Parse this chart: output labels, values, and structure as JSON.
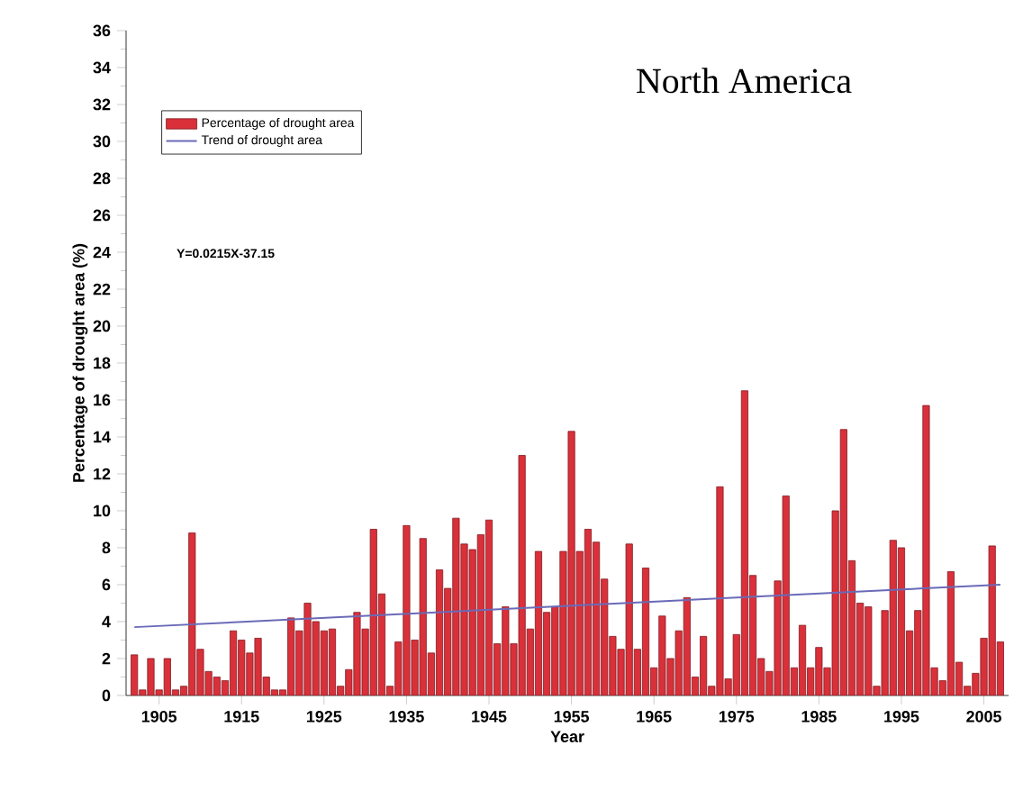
{
  "chart_data": {
    "type": "bar",
    "title": "North America",
    "xlabel": "Year",
    "ylabel": "Percentage of drought area (%)",
    "annotations": [
      "Y=0.0215X-37.15"
    ],
    "x": [
      1902,
      1903,
      1904,
      1905,
      1906,
      1907,
      1908,
      1909,
      1910,
      1911,
      1912,
      1913,
      1914,
      1915,
      1916,
      1917,
      1918,
      1919,
      1920,
      1921,
      1922,
      1923,
      1924,
      1925,
      1926,
      1927,
      1928,
      1929,
      1930,
      1931,
      1932,
      1933,
      1934,
      1935,
      1936,
      1937,
      1938,
      1939,
      1940,
      1941,
      1942,
      1943,
      1944,
      1945,
      1946,
      1947,
      1948,
      1949,
      1950,
      1951,
      1952,
      1953,
      1954,
      1955,
      1956,
      1957,
      1958,
      1959,
      1960,
      1961,
      1962,
      1963,
      1964,
      1965,
      1966,
      1967,
      1968,
      1969,
      1970,
      1971,
      1972,
      1973,
      1974,
      1975,
      1976,
      1977,
      1978,
      1979,
      1980,
      1981,
      1982,
      1983,
      1984,
      1985,
      1986,
      1987,
      1988,
      1989,
      1990,
      1991,
      1992,
      1993,
      1994,
      1995,
      1996,
      1997,
      1998,
      1999,
      2000,
      2001,
      2002,
      2003,
      2004,
      2005,
      2006,
      2007
    ],
    "series": [
      {
        "name": "Percentage of drought area",
        "color": "#d9303a",
        "values": [
          2.2,
          0.3,
          2.0,
          0.3,
          2.0,
          0.3,
          0.5,
          8.8,
          2.5,
          1.3,
          1.0,
          0.8,
          3.5,
          3.0,
          2.3,
          3.1,
          1.0,
          0.3,
          0.3,
          4.2,
          3.5,
          5.0,
          4.0,
          3.5,
          3.6,
          0.5,
          1.4,
          4.5,
          3.6,
          9.0,
          5.5,
          0.5,
          2.9,
          9.2,
          3.0,
          8.5,
          2.3,
          6.8,
          5.8,
          9.6,
          8.2,
          7.9,
          8.7,
          9.5,
          2.8,
          4.8,
          2.8,
          13.0,
          3.6,
          7.8,
          4.5,
          4.8,
          7.8,
          14.3,
          7.8,
          9.0,
          8.3,
          6.3,
          3.2,
          2.5,
          8.2,
          2.5,
          6.9,
          1.5,
          4.3,
          2.0,
          3.5,
          5.3,
          1.0,
          3.2,
          0.5,
          11.3,
          0.9,
          3.3,
          16.5,
          6.5,
          2.0,
          1.3,
          6.2,
          10.8,
          1.5,
          3.8,
          1.5,
          2.6,
          1.5,
          10.0,
          14.4,
          7.3,
          5.0,
          4.8,
          0.5,
          4.6,
          8.4,
          8.0,
          3.5,
          4.6,
          15.7,
          1.5,
          0.8,
          6.7,
          1.8,
          0.5,
          1.2,
          3.1,
          8.1,
          2.9
        ]
      },
      {
        "name": "Trend of drought area",
        "type": "line",
        "color": "#6a6ab8",
        "x": [
          1902,
          2007
        ],
        "values": [
          3.7,
          6.0
        ]
      }
    ],
    "xlim": [
      1901,
      2008
    ],
    "xticks": [
      1905,
      1915,
      1925,
      1935,
      1945,
      1955,
      1965,
      1975,
      1985,
      1995,
      2005
    ],
    "ylim": [
      0,
      36
    ],
    "yticks": [
      0,
      2,
      4,
      6,
      8,
      10,
      12,
      14,
      16,
      18,
      20,
      22,
      24,
      26,
      28,
      30,
      32,
      34,
      36
    ],
    "legend": "top left",
    "grid": false,
    "marker": "none"
  }
}
